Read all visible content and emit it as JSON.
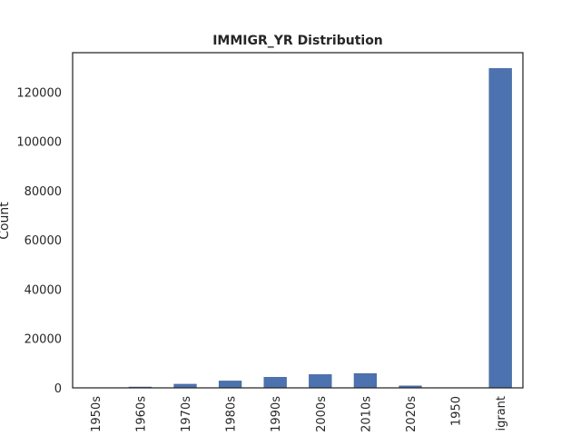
{
  "chart_data": {
    "type": "bar",
    "title": "IMMIGR_YR Distribution",
    "xlabel": "",
    "ylabel": "Count",
    "categories": [
      "1950s",
      "1960s",
      "1970s",
      "1980s",
      "1990s",
      "2000s",
      "2010s",
      "2020s",
      "1950",
      "igrant"
    ],
    "values": [
      60,
      350,
      1500,
      2800,
      4300,
      5400,
      5800,
      800,
      50,
      129600
    ],
    "ylim": [
      0,
      136000
    ],
    "yticks": [
      0,
      20000,
      40000,
      60000,
      80000,
      100000,
      120000
    ],
    "grid": false,
    "bar_color": "#4c72b0"
  }
}
